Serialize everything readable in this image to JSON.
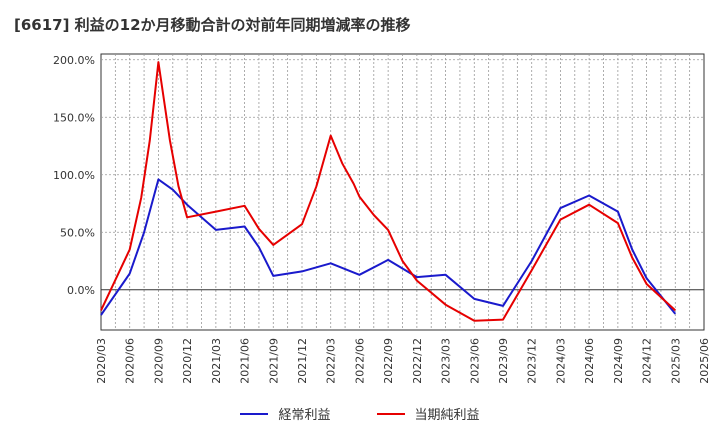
{
  "chart_data": {
    "type": "line",
    "title": "[6617]  利益の12か月移動合計の対前年同期増減率の推移",
    "xlabel": "",
    "ylabel": "",
    "x": [
      "2020/03",
      "2020/06",
      "2020/09",
      "2020/12",
      "2021/03",
      "2021/06",
      "2021/09",
      "2021/12",
      "2022/03",
      "2022/06",
      "2022/09",
      "2022/12",
      "2023/03",
      "2023/06",
      "2023/09",
      "2023/12",
      "2024/03",
      "2024/06",
      "2024/09",
      "2024/12",
      "2025/03",
      "2025/06"
    ],
    "ylim": [
      -35,
      205
    ],
    "yticks": [
      0,
      50,
      100,
      150,
      200
    ],
    "ytick_labels": [
      "0.0%",
      "50.0%",
      "100.0%",
      "150.0%",
      "200.0%"
    ],
    "grid": true,
    "legend_position": "bottom",
    "series": [
      {
        "name": "経常利益",
        "color": "#1a1acc",
        "x": [
          0,
          1,
          1.5,
          2,
          2.5,
          3,
          4,
          5,
          5.5,
          6,
          7,
          8,
          9,
          10,
          11,
          12,
          13,
          14,
          15,
          16,
          17,
          18,
          18.5,
          19,
          20
        ],
        "values": [
          -22,
          14,
          50,
          96,
          87,
          74,
          52,
          55,
          37,
          12,
          16,
          23,
          13,
          26,
          11,
          13,
          -8,
          -14,
          25,
          71,
          82,
          68,
          35,
          10,
          -21
        ]
      },
      {
        "name": "当期純利益",
        "color": "#e60000",
        "x": [
          0,
          1,
          1.4,
          1.7,
          2,
          2.4,
          2.7,
          3,
          4,
          5,
          5.5,
          6,
          7,
          7.5,
          8,
          8.4,
          8.8,
          9,
          9.5,
          10,
          10.5,
          11,
          12,
          13,
          14,
          15,
          16,
          17,
          18,
          18.5,
          19,
          20
        ],
        "values": [
          -18,
          35,
          80,
          130,
          198,
          130,
          90,
          63,
          68,
          73,
          53,
          39,
          57,
          90,
          134,
          110,
          92,
          81,
          65,
          52,
          25,
          8,
          -13,
          -27,
          -26,
          17,
          61,
          74,
          58,
          28,
          5,
          -18
        ]
      }
    ]
  }
}
